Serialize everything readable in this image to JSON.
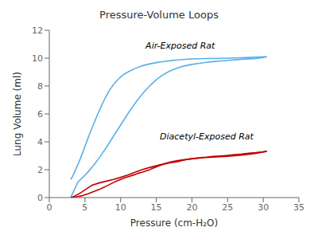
{
  "chart_data": {
    "type": "line",
    "title": "Pressure-Volume Loops",
    "x_label": "Pressure (cm-H₂O)",
    "y_label": "Lung Volume (ml)",
    "xlim": [
      0,
      35
    ],
    "ylim": [
      0,
      12
    ],
    "xticks": [
      0,
      5,
      10,
      15,
      20,
      25,
      30,
      35
    ],
    "yticks": [
      0,
      2,
      4,
      6,
      8,
      10,
      12
    ],
    "grid": false,
    "annotations": [
      {
        "text": "Air-Exposed Rat",
        "x": 13.5,
        "y": 10.7
      },
      {
        "text": "Diacetyl-Exposed Rat",
        "x": 15.5,
        "y": 4.2
      }
    ],
    "series": [
      {
        "color": "#5aafea",
        "x": [
          3.0,
          3.3,
          3.6,
          4.0,
          4.4,
          4.8,
          5.2,
          5.6,
          6.0,
          6.4,
          6.8,
          7.2,
          7.6,
          8.0,
          8.5,
          9.0,
          9.5,
          10.0,
          10.5,
          11.0,
          12.0,
          13.0,
          14.0,
          15.0,
          16.0,
          17.0,
          18.0,
          19.0,
          20.0,
          22.0,
          24.0,
          26.0,
          28.0,
          30.0,
          30.5
        ],
        "values": [
          1.3,
          1.55,
          1.9,
          2.35,
          2.85,
          3.4,
          3.95,
          4.5,
          5.0,
          5.5,
          6.0,
          6.45,
          6.9,
          7.3,
          7.75,
          8.1,
          8.4,
          8.65,
          8.85,
          9.0,
          9.25,
          9.45,
          9.58,
          9.68,
          9.76,
          9.82,
          9.87,
          9.91,
          9.94,
          9.97,
          9.99,
          10.01,
          10.05,
          10.1,
          10.1
        ]
      },
      {
        "color": "#5aafea",
        "x": [
          30.5,
          30.0,
          29.0,
          28.0,
          27.0,
          26.0,
          25.0,
          24.0,
          23.0,
          22.0,
          21.0,
          20.0,
          19.0,
          18.5,
          18.0,
          17.5,
          17.0,
          16.5,
          16.0,
          15.5,
          15.0,
          14.5,
          14.0,
          13.5,
          13.0,
          12.5,
          12.0,
          11.5,
          11.0,
          10.5,
          10.0,
          9.5,
          9.0,
          8.5,
          8.0,
          7.5,
          7.0,
          6.5,
          6.0,
          5.5,
          5.0,
          4.5,
          4.0,
          3.5,
          3.0
        ],
        "values": [
          10.1,
          10.05,
          9.98,
          9.95,
          9.92,
          9.88,
          9.84,
          9.8,
          9.75,
          9.7,
          9.63,
          9.55,
          9.45,
          9.38,
          9.3,
          9.2,
          9.1,
          8.97,
          8.82,
          8.65,
          8.45,
          8.22,
          7.97,
          7.7,
          7.4,
          7.08,
          6.74,
          6.38,
          6.0,
          5.6,
          5.2,
          4.8,
          4.4,
          4.0,
          3.6,
          3.22,
          2.85,
          2.5,
          2.18,
          1.88,
          1.6,
          1.35,
          1.1,
          0.55,
          0.0
        ]
      },
      {
        "color": "#c00000",
        "x": [
          3.0,
          3.3,
          3.6,
          4.0,
          4.5,
          5.0,
          5.5,
          6.0,
          7.0,
          8.0,
          9.0,
          10.0,
          11.0,
          12.0,
          13.0,
          14.0,
          15.0,
          16.0,
          17.0,
          18.0,
          19.0,
          20.0,
          21.0,
          22.0,
          23.0,
          24.0,
          25.0,
          26.0,
          27.0,
          28.0,
          29.0,
          30.0,
          30.5
        ],
        "values": [
          0.0,
          0.05,
          0.12,
          0.22,
          0.38,
          0.55,
          0.72,
          0.88,
          1.05,
          1.18,
          1.3,
          1.45,
          1.62,
          1.82,
          2.0,
          2.15,
          2.28,
          2.42,
          2.55,
          2.65,
          2.72,
          2.78,
          2.83,
          2.87,
          2.9,
          2.93,
          2.96,
          3.0,
          3.05,
          3.1,
          3.18,
          3.28,
          3.32
        ]
      },
      {
        "color": "#c00000",
        "x": [
          30.5,
          30.0,
          29.5,
          29.0,
          28.0,
          27.0,
          26.5,
          26.0,
          25.5,
          25.0,
          24.0,
          23.0,
          22.5,
          22.0,
          21.5,
          21.0,
          20.0,
          19.5,
          19.0,
          18.5,
          18.0,
          17.0,
          16.5,
          16.0,
          15.5,
          15.0,
          14.5,
          14.0,
          13.0,
          12.5,
          12.0,
          11.0,
          10.5,
          10.0,
          9.5,
          9.0,
          8.5,
          8.0,
          7.5,
          7.0,
          6.5,
          6.0,
          5.5,
          5.0,
          4.5,
          4.0,
          3.5,
          3.0
        ],
        "values": [
          3.32,
          3.28,
          3.25,
          3.22,
          3.18,
          3.12,
          3.1,
          3.08,
          3.05,
          3.02,
          2.98,
          2.95,
          2.93,
          2.9,
          2.88,
          2.85,
          2.8,
          2.75,
          2.7,
          2.65,
          2.58,
          2.5,
          2.45,
          2.38,
          2.3,
          2.2,
          2.1,
          1.98,
          1.82,
          1.75,
          1.65,
          1.48,
          1.4,
          1.3,
          1.2,
          1.08,
          0.95,
          0.82,
          0.7,
          0.58,
          0.48,
          0.38,
          0.28,
          0.2,
          0.12,
          0.07,
          0.03,
          0.0
        ]
      }
    ]
  }
}
